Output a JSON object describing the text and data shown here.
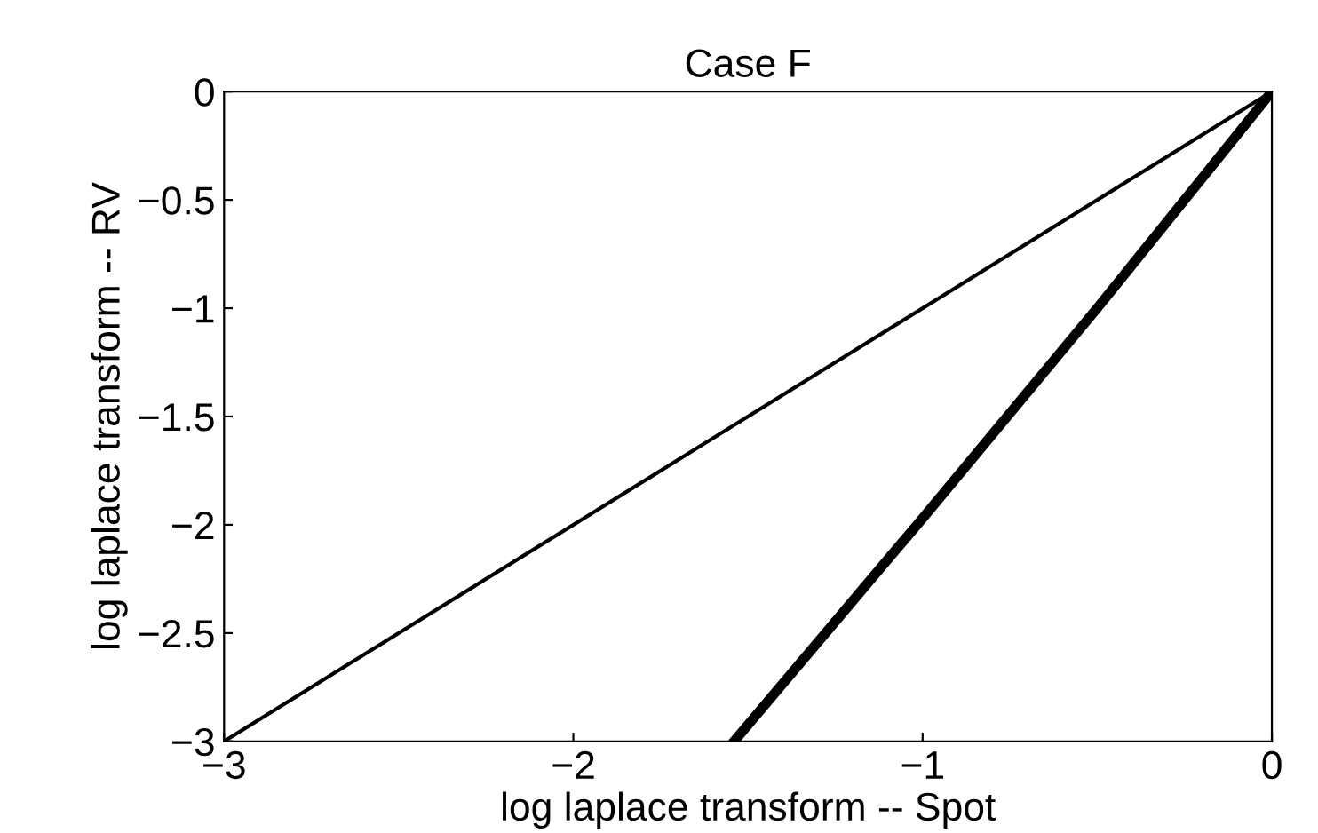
{
  "chart_data": {
    "type": "line",
    "title": "Case F",
    "xlabel": "log laplace transform -- Spot",
    "ylabel": "log laplace transform -- RV",
    "xlim": [
      -3,
      0
    ],
    "ylim": [
      -3,
      0
    ],
    "xticks": [
      {
        "value": -3,
        "label": "−3"
      },
      {
        "value": -2,
        "label": "−2"
      },
      {
        "value": -1,
        "label": "−1"
      },
      0
    ],
    "yticks": [
      0,
      {
        "value": -0.5,
        "label": "−0.5"
      },
      {
        "value": -1,
        "label": "−1"
      },
      {
        "value": -1.5,
        "label": "−1.5"
      },
      {
        "value": -2,
        "label": "−2"
      },
      {
        "value": -2.5,
        "label": "−2.5"
      },
      {
        "value": -3,
        "label": "−3"
      }
    ],
    "grid": false,
    "legend": false,
    "marker": "none",
    "line_style": "solid",
    "series": [
      {
        "color": "#000000",
        "x": [
          -3,
          0
        ],
        "values": [
          -3,
          0
        ]
      },
      {
        "color": "#000000",
        "x": [
          -1.54,
          -1.0,
          -0.5,
          0
        ],
        "values": [
          -3,
          -1.97,
          -1.0,
          0
        ]
      }
    ]
  }
}
